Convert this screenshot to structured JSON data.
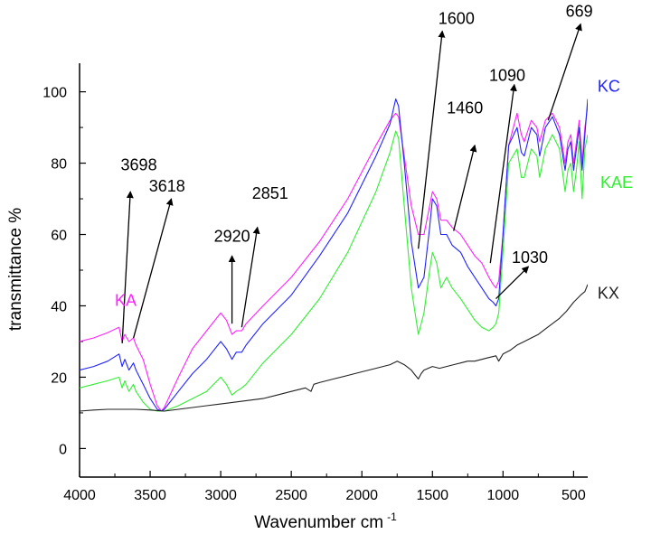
{
  "chart_data": {
    "type": "line",
    "title": "",
    "xlabel": "Wavenumber cm",
    "xlabel_superscript": "-1",
    "ylabel": "transmittance %",
    "xlim": [
      4000,
      400
    ],
    "ylim": [
      -8,
      108
    ],
    "x_reversed": true,
    "x_ticks": [
      4000,
      3500,
      3000,
      2500,
      2000,
      1500,
      1000,
      500
    ],
    "y_ticks": [
      0,
      20,
      40,
      60,
      80,
      100
    ],
    "grid": false,
    "legend": "none",
    "series": [
      {
        "name": "KA",
        "color": "#ff22ff",
        "x": [
          4000,
          3900,
          3800,
          3720,
          3698,
          3680,
          3650,
          3618,
          3600,
          3550,
          3500,
          3450,
          3420,
          3400,
          3300,
          3200,
          3100,
          3000,
          2960,
          2920,
          2890,
          2851,
          2820,
          2700,
          2500,
          2300,
          2100,
          1900,
          1800,
          1760,
          1740,
          1700,
          1650,
          1600,
          1560,
          1520,
          1500,
          1470,
          1440,
          1400,
          1360,
          1300,
          1250,
          1200,
          1150,
          1100,
          1070,
          1050,
          1030,
          1000,
          960,
          900,
          870,
          850,
          800,
          760,
          740,
          700,
          650,
          600,
          560,
          540,
          520,
          500,
          480,
          460,
          440,
          420,
          400
        ],
        "y": [
          30,
          31,
          32.5,
          34,
          30,
          32,
          30,
          31,
          29,
          25,
          18,
          12,
          10.5,
          11.5,
          20,
          28,
          33,
          38,
          36,
          32,
          33,
          33,
          35,
          40,
          48,
          58,
          70,
          85,
          92,
          94,
          93,
          82,
          68,
          60,
          60,
          68,
          72,
          70,
          64,
          64,
          62,
          60,
          57,
          54,
          52,
          48,
          46,
          45,
          47,
          60,
          85,
          94,
          88,
          86,
          92,
          90,
          86,
          92,
          94,
          90,
          80,
          86,
          88,
          80,
          86,
          92,
          80,
          90,
          96
        ]
      },
      {
        "name": "KC",
        "color": "#2222ff",
        "x": [
          4000,
          3900,
          3800,
          3720,
          3698,
          3680,
          3650,
          3618,
          3600,
          3550,
          3500,
          3450,
          3420,
          3400,
          3300,
          3200,
          3100,
          3000,
          2960,
          2920,
          2890,
          2851,
          2820,
          2700,
          2500,
          2300,
          2100,
          1900,
          1800,
          1760,
          1740,
          1700,
          1650,
          1600,
          1560,
          1520,
          1500,
          1470,
          1440,
          1400,
          1360,
          1300,
          1250,
          1200,
          1150,
          1100,
          1070,
          1050,
          1030,
          1000,
          960,
          900,
          870,
          850,
          800,
          760,
          740,
          700,
          650,
          600,
          560,
          540,
          520,
          500,
          480,
          460,
          440,
          420,
          400
        ],
        "y": [
          22,
          23,
          24.5,
          26.5,
          23,
          25,
          22,
          24,
          22,
          18,
          14,
          11,
          10.5,
          11,
          16,
          21,
          25,
          30,
          28,
          25,
          27,
          27,
          29,
          35,
          43,
          54,
          66,
          82,
          91,
          98,
          96,
          80,
          58,
          45,
          48,
          62,
          70,
          68,
          60,
          60,
          57,
          55,
          51,
          48,
          45,
          42,
          41,
          40,
          42,
          60,
          85,
          90,
          83,
          82,
          90,
          88,
          82,
          90,
          93,
          88,
          78,
          84,
          86,
          78,
          84,
          90,
          78,
          88,
          98
        ]
      },
      {
        "name": "KAE",
        "color": "#33ee33",
        "x": [
          4000,
          3900,
          3800,
          3720,
          3698,
          3680,
          3650,
          3618,
          3600,
          3550,
          3500,
          3450,
          3420,
          3400,
          3300,
          3200,
          3100,
          3000,
          2960,
          2920,
          2890,
          2851,
          2820,
          2700,
          2500,
          2300,
          2100,
          1900,
          1800,
          1760,
          1740,
          1700,
          1650,
          1600,
          1560,
          1520,
          1500,
          1470,
          1440,
          1400,
          1360,
          1300,
          1250,
          1200,
          1150,
          1100,
          1070,
          1050,
          1030,
          1000,
          960,
          900,
          870,
          850,
          800,
          760,
          740,
          700,
          650,
          600,
          560,
          540,
          520,
          500,
          480,
          460,
          440,
          420,
          400
        ],
        "y": [
          17,
          18,
          19,
          20,
          17,
          19,
          16,
          18,
          16,
          13,
          11,
          10.5,
          10.5,
          10.5,
          12,
          14,
          16,
          20,
          18,
          15,
          16,
          17,
          18,
          24,
          32,
          42,
          55,
          72,
          83,
          89,
          87,
          68,
          45,
          32,
          38,
          50,
          55,
          52,
          45,
          48,
          45,
          42,
          39,
          36,
          34,
          33,
          34,
          35,
          38,
          55,
          80,
          84,
          76,
          76,
          84,
          82,
          76,
          84,
          88,
          84,
          72,
          78,
          80,
          72,
          78,
          86,
          70,
          84,
          88
        ]
      },
      {
        "name": "KX",
        "color": "#222222",
        "x": [
          4000,
          3900,
          3800,
          3700,
          3600,
          3500,
          3400,
          3300,
          3200,
          3100,
          3000,
          2900,
          2800,
          2700,
          2600,
          2500,
          2400,
          2360,
          2340,
          2300,
          2200,
          2100,
          2000,
          1900,
          1800,
          1750,
          1700,
          1650,
          1620,
          1600,
          1580,
          1560,
          1500,
          1450,
          1400,
          1350,
          1300,
          1250,
          1200,
          1150,
          1100,
          1050,
          1030,
          1000,
          950,
          900,
          850,
          800,
          750,
          700,
          650,
          600,
          550,
          500,
          450,
          420,
          400
        ],
        "y": [
          10.5,
          10.8,
          11,
          11,
          11,
          10.8,
          10.5,
          11,
          11.5,
          12,
          12.5,
          13,
          13.5,
          14,
          15,
          16,
          17,
          16,
          18,
          18.5,
          19.5,
          20.5,
          21.5,
          22.5,
          23.5,
          24.5,
          23.5,
          22,
          20.5,
          19.5,
          21,
          22,
          23,
          22.5,
          23,
          23.5,
          24,
          24.5,
          24.5,
          25,
          25.5,
          26,
          24.5,
          26.5,
          27.5,
          29,
          30,
          31,
          32,
          33.5,
          35,
          36.5,
          38.5,
          41,
          43,
          44,
          46
        ]
      }
    ],
    "series_labels": [
      {
        "series": "KA",
        "text": "KA",
        "x": 3750,
        "y": 40
      },
      {
        "series": "KC",
        "text": "KC",
        "x": 330,
        "y": 100
      },
      {
        "series": "KAE",
        "text": "KAE",
        "x": 310,
        "y": 73
      },
      {
        "series": "KX",
        "text": "KX",
        "x": 330,
        "y": 42
      }
    ],
    "annotations": [
      {
        "text": "3698",
        "from": [
          3698,
          29.5
        ],
        "to": [
          3640,
          72
        ],
        "label_at": [
          3580,
          78
        ]
      },
      {
        "text": "3618",
        "from": [
          3618,
          31
        ],
        "to": [
          3350,
          70
        ],
        "label_at": [
          3380,
          72
        ]
      },
      {
        "text": "2920",
        "from": [
          2920,
          35
        ],
        "to": [
          2920,
          54
        ],
        "label_at": [
          2920,
          58
        ]
      },
      {
        "text": "2851",
        "from": [
          2851,
          34
        ],
        "to": [
          2740,
          62
        ],
        "label_at": [
          2650,
          70
        ]
      },
      {
        "text": "1600",
        "from": [
          1600,
          56
        ],
        "to": [
          1430,
          117
        ],
        "label_at": [
          1330,
          119
        ]
      },
      {
        "text": "1460",
        "from": [
          1350,
          61
        ],
        "to": [
          1200,
          85
        ],
        "label_at": [
          1270,
          94
        ]
      },
      {
        "text": "1090",
        "from": [
          1090,
          52
        ],
        "to": [
          920,
          102
        ],
        "label_at": [
          970,
          103
        ]
      },
      {
        "text": "1030",
        "from": [
          1050,
          42
        ],
        "to": [
          820,
          51
        ],
        "label_at": [
          810,
          52
        ]
      },
      {
        "text": "669",
        "from": [
          680,
          92
        ],
        "to": [
          450,
          119
        ],
        "label_at": [
          460,
          121
        ]
      }
    ]
  }
}
